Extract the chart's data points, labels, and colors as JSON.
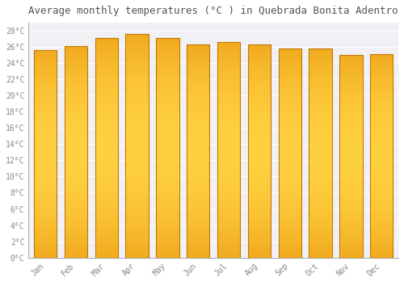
{
  "title": "Average monthly temperatures (°C ) in Quebrada Bonita Adentro",
  "months": [
    "Jan",
    "Feb",
    "Mar",
    "Apr",
    "May",
    "Jun",
    "Jul",
    "Aug",
    "Sep",
    "Oct",
    "Nov",
    "Dec"
  ],
  "values": [
    25.6,
    26.1,
    27.1,
    27.6,
    27.1,
    26.3,
    26.6,
    26.3,
    25.8,
    25.8,
    25.0,
    25.1
  ],
  "bar_color_edge": "#E8920A",
  "bar_color_mid": "#FFCC33",
  "bar_color_main": "#FFA820",
  "background_color": "#FFFFFF",
  "plot_bg_color": "#F0F0F5",
  "grid_color": "#FFFFFF",
  "title_fontsize": 9,
  "tick_fontsize": 7,
  "ylim": [
    0,
    29
  ],
  "font_family": "monospace"
}
